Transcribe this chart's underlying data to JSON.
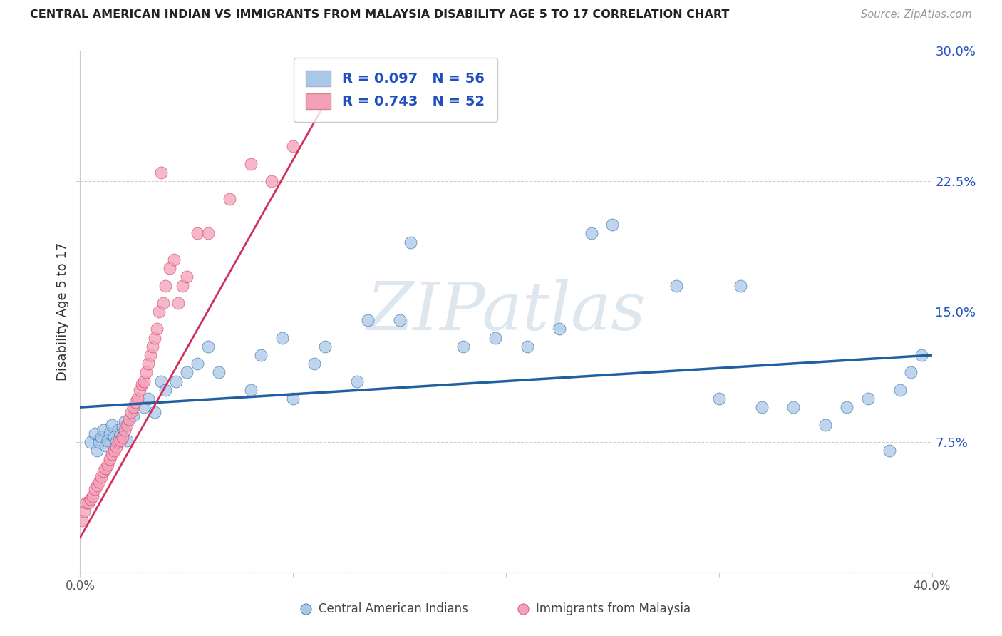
{
  "title": "CENTRAL AMERICAN INDIAN VS IMMIGRANTS FROM MALAYSIA DISABILITY AGE 5 TO 17 CORRELATION CHART",
  "source": "Source: ZipAtlas.com",
  "ylabel": "Disability Age 5 to 17",
  "xlim": [
    0.0,
    0.4
  ],
  "ylim": [
    0.0,
    0.3
  ],
  "xtick_vals": [
    0.0,
    0.1,
    0.2,
    0.3,
    0.4
  ],
  "xticklabels": [
    "0.0%",
    "",
    "",
    "",
    "40.0%"
  ],
  "ytick_vals": [
    0.0,
    0.075,
    0.15,
    0.225,
    0.3
  ],
  "yticklabels": [
    "",
    "7.5%",
    "15.0%",
    "22.5%",
    "30.0%"
  ],
  "blue_color": "#a8c8e8",
  "pink_color": "#f4a0b8",
  "blue_line_color": "#2060a0",
  "pink_line_color": "#d03060",
  "legend_label_color": "#2050c0",
  "legend_blue_label": "R = 0.097   N = 56",
  "legend_pink_label": "R = 0.743   N = 52",
  "watermark_text": "ZIPatlas",
  "grid_color": "#cccccc",
  "bg_color": "#ffffff",
  "blue_x": [
    0.005,
    0.007,
    0.008,
    0.009,
    0.01,
    0.011,
    0.012,
    0.013,
    0.014,
    0.015,
    0.016,
    0.017,
    0.018,
    0.019,
    0.02,
    0.021,
    0.022,
    0.025,
    0.03,
    0.032,
    0.035,
    0.038,
    0.04,
    0.045,
    0.05,
    0.055,
    0.06,
    0.065,
    0.08,
    0.085,
    0.095,
    0.1,
    0.11,
    0.115,
    0.13,
    0.135,
    0.15,
    0.155,
    0.18,
    0.195,
    0.21,
    0.225,
    0.24,
    0.25,
    0.28,
    0.3,
    0.31,
    0.32,
    0.335,
    0.35,
    0.36,
    0.37,
    0.38,
    0.385,
    0.39,
    0.395
  ],
  "blue_y": [
    0.075,
    0.08,
    0.07,
    0.075,
    0.078,
    0.082,
    0.073,
    0.076,
    0.08,
    0.085,
    0.078,
    0.075,
    0.082,
    0.079,
    0.083,
    0.087,
    0.076,
    0.09,
    0.095,
    0.1,
    0.092,
    0.11,
    0.105,
    0.11,
    0.115,
    0.12,
    0.13,
    0.115,
    0.105,
    0.125,
    0.135,
    0.1,
    0.12,
    0.13,
    0.11,
    0.145,
    0.145,
    0.19,
    0.13,
    0.135,
    0.13,
    0.14,
    0.195,
    0.2,
    0.165,
    0.1,
    0.165,
    0.095,
    0.095,
    0.085,
    0.095,
    0.1,
    0.07,
    0.105,
    0.115,
    0.125
  ],
  "pink_x": [
    0.001,
    0.002,
    0.003,
    0.004,
    0.005,
    0.006,
    0.007,
    0.008,
    0.009,
    0.01,
    0.011,
    0.012,
    0.013,
    0.014,
    0.015,
    0.016,
    0.017,
    0.018,
    0.019,
    0.02,
    0.021,
    0.022,
    0.023,
    0.024,
    0.025,
    0.026,
    0.027,
    0.028,
    0.029,
    0.03,
    0.031,
    0.032,
    0.033,
    0.034,
    0.035,
    0.036,
    0.037,
    0.038,
    0.039,
    0.04,
    0.042,
    0.044,
    0.046,
    0.048,
    0.05,
    0.055,
    0.06,
    0.07,
    0.08,
    0.09,
    0.1,
    0.115
  ],
  "pink_y": [
    0.03,
    0.035,
    0.04,
    0.04,
    0.042,
    0.044,
    0.048,
    0.05,
    0.052,
    0.055,
    0.058,
    0.06,
    0.062,
    0.065,
    0.068,
    0.07,
    0.072,
    0.075,
    0.076,
    0.078,
    0.082,
    0.085,
    0.088,
    0.092,
    0.095,
    0.098,
    0.1,
    0.105,
    0.108,
    0.11,
    0.115,
    0.12,
    0.125,
    0.13,
    0.135,
    0.14,
    0.15,
    0.23,
    0.155,
    0.165,
    0.175,
    0.18,
    0.155,
    0.165,
    0.17,
    0.195,
    0.195,
    0.215,
    0.235,
    0.225,
    0.245,
    0.27
  ],
  "blue_line_x0": 0.0,
  "blue_line_x1": 0.4,
  "blue_line_y0": 0.095,
  "blue_line_y1": 0.125,
  "pink_line_x0": 0.0,
  "pink_line_x1": 0.115,
  "pink_line_y0": 0.02,
  "pink_line_y1": 0.27
}
